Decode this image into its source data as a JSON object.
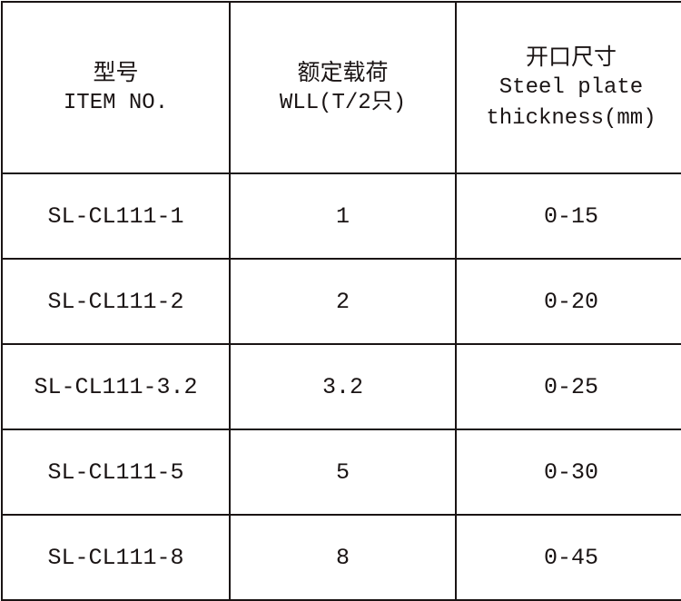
{
  "headers": [
    {
      "cn": "型号",
      "en": "ITEM NO."
    },
    {
      "cn": "额定载荷",
      "en": "WLL(T/2只)"
    },
    {
      "cn": "开口尺寸",
      "en": "Steel plate",
      "en2": "thickness(mm)"
    }
  ],
  "rows": [
    [
      "SL-CL111-1",
      "1",
      "0-15"
    ],
    [
      "SL-CL111-2",
      "2",
      "0-20"
    ],
    [
      "SL-CL111-3.2",
      "3.2",
      "0-25"
    ],
    [
      "SL-CL111-5",
      "5",
      "0-30"
    ],
    [
      "SL-CL111-8",
      "8",
      "0-45"
    ]
  ]
}
